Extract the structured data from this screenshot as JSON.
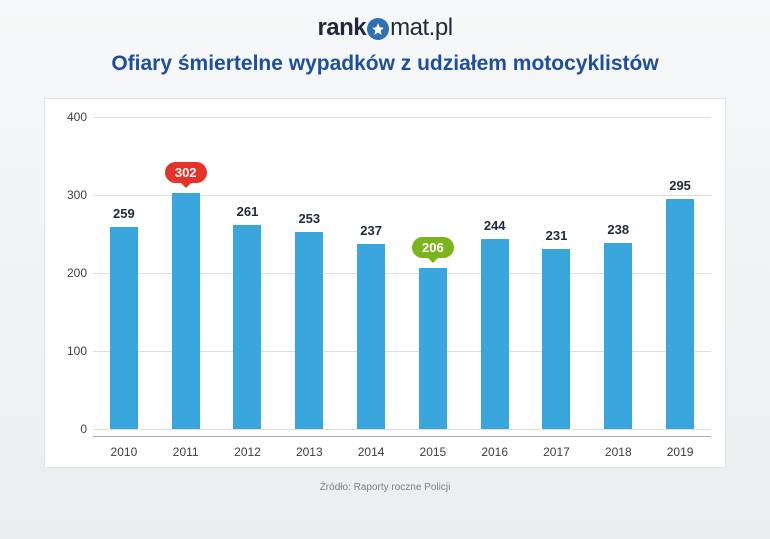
{
  "logo": {
    "part1": "rank",
    "part2": "mat",
    "part3": ".pl"
  },
  "title": "Ofiary śmiertelne wypadków z udziałem motocyklistów",
  "chart": {
    "type": "bar",
    "ylim": [
      0,
      400
    ],
    "yticks": [
      0,
      100,
      200,
      300,
      400
    ],
    "categories": [
      "2010",
      "2011",
      "2012",
      "2013",
      "2014",
      "2015",
      "2016",
      "2017",
      "2018",
      "2019"
    ],
    "values": [
      259,
      302,
      261,
      253,
      237,
      206,
      244,
      231,
      238,
      295
    ],
    "bar_color": "#39a7dd",
    "grid_color": "#dcdfe3",
    "background_color": "#ffffff",
    "label_color": "#1e2a3a",
    "highlight_max": {
      "index": 1,
      "pill_color": "#e5332a"
    },
    "highlight_min": {
      "index": 5,
      "pill_color": "#7ab51d"
    }
  },
  "source": "Źródło: Raporty roczne Policji"
}
